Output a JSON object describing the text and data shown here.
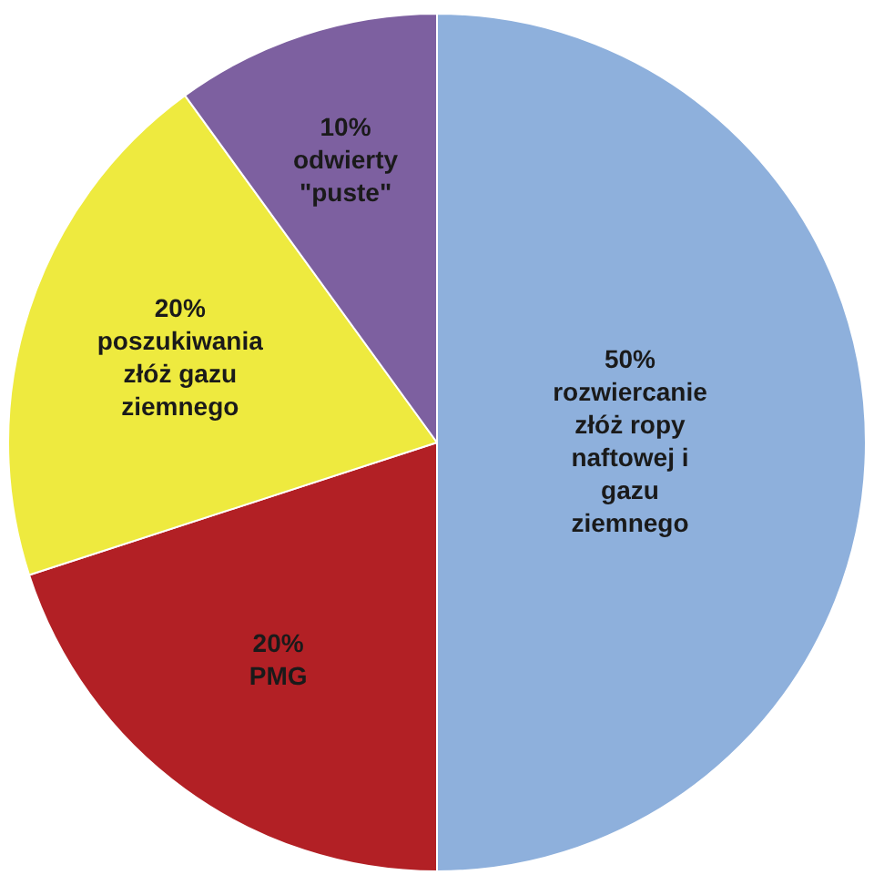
{
  "chart_data": {
    "type": "pie",
    "categories": [
      "rozwiercanie złóż ropy naftowej i gazu ziemnego",
      "PMG",
      "poszukiwania złóż gazu ziemnego",
      "odwierty \"puste\""
    ],
    "values": [
      50,
      20,
      20,
      10
    ],
    "colors": [
      "#8eb0dc",
      "#b22025",
      "#eeea3f",
      "#7d60a0"
    ],
    "value_labels": [
      "50%",
      "20%",
      "20%",
      "10%"
    ],
    "legend": false
  }
}
